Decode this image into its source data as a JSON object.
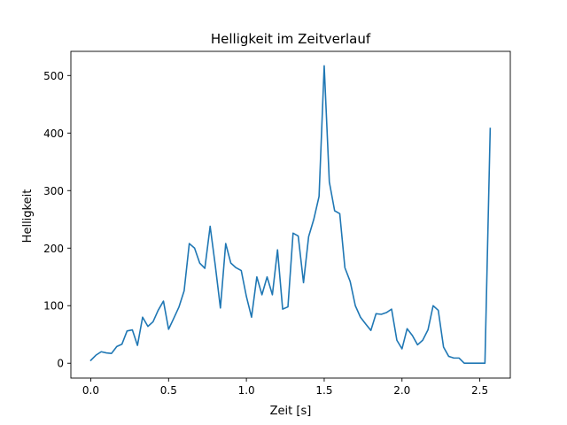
{
  "chart_data": {
    "type": "line",
    "title": "Helligkeit im Zeitverlauf",
    "xlabel": "Zeit [s]",
    "ylabel": "Helligkeit",
    "xlim": [
      -0.128,
      2.696
    ],
    "ylim": [
      -25.8,
      542
    ],
    "xticks": [
      0.0,
      0.5,
      1.0,
      1.5,
      2.0,
      2.5
    ],
    "xtick_labels": [
      "0.0",
      "0.5",
      "1.0",
      "1.5",
      "2.0",
      "2.5"
    ],
    "yticks": [
      0,
      100,
      200,
      300,
      400,
      500
    ],
    "ytick_labels": [
      "0",
      "100",
      "200",
      "300",
      "400",
      "500"
    ],
    "grid": false,
    "line_color": "#1f77b4",
    "series": [
      {
        "x": [
          0.0,
          0.033,
          0.067,
          0.1,
          0.133,
          0.167,
          0.2,
          0.233,
          0.267,
          0.3,
          0.333,
          0.367,
          0.4,
          0.433,
          0.467,
          0.5,
          0.533,
          0.567,
          0.6,
          0.633,
          0.667,
          0.7,
          0.733,
          0.767,
          0.8,
          0.833,
          0.867,
          0.9,
          0.933,
          0.967,
          1.0,
          1.033,
          1.067,
          1.1,
          1.133,
          1.167,
          1.2,
          1.233,
          1.267,
          1.3,
          1.333,
          1.367,
          1.4,
          1.433,
          1.467,
          1.5,
          1.533,
          1.567,
          1.6,
          1.633,
          1.667,
          1.7,
          1.733,
          1.767,
          1.8,
          1.833,
          1.867,
          1.9,
          1.933,
          1.967,
          2.0,
          2.033,
          2.067,
          2.1,
          2.133,
          2.167,
          2.2,
          2.233,
          2.267,
          2.3,
          2.333,
          2.367,
          2.4,
          2.433,
          2.467,
          2.5,
          2.533,
          2.567
        ],
        "y": [
          5,
          14,
          20,
          18,
          17,
          29,
          33,
          56,
          58,
          31,
          80,
          64,
          72,
          92,
          108,
          59,
          78,
          98,
          126,
          208,
          200,
          174,
          165,
          238,
          170,
          96,
          208,
          174,
          166,
          161,
          116,
          80,
          150,
          119,
          150,
          119,
          197,
          94,
          98,
          226,
          221,
          140,
          220,
          250,
          290,
          517,
          315,
          265,
          260,
          166,
          142,
          100,
          80,
          68,
          57,
          86,
          85,
          88,
          94,
          40,
          25,
          60,
          48,
          32,
          40,
          58,
          100,
          92,
          28,
          12,
          9,
          9,
          0,
          0,
          0,
          0,
          0,
          408
        ]
      }
    ]
  }
}
